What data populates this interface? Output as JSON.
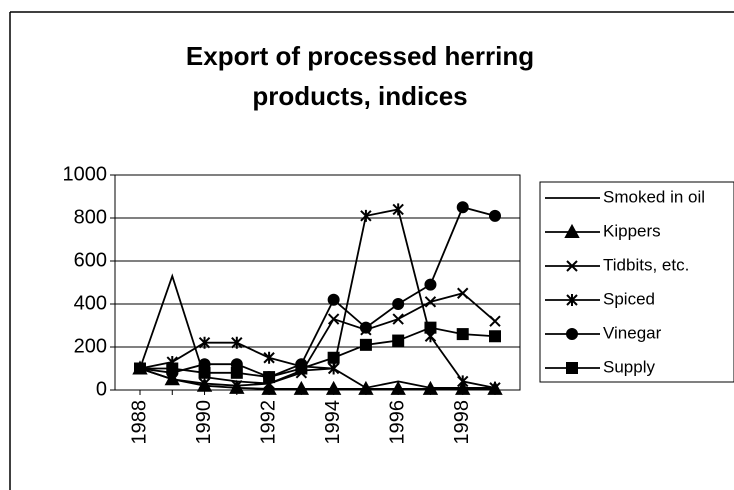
{
  "chart_data": {
    "type": "line",
    "title": "Export of processed herring",
    "subtitle": "products, indices",
    "categories": [
      "1988",
      null,
      "1990",
      null,
      "1992",
      null,
      "1994",
      null,
      "1996",
      null,
      "1998",
      null
    ],
    "ylim": [
      0,
      1000
    ],
    "yticks": [
      0,
      200,
      400,
      600,
      800,
      1000
    ],
    "grid": true,
    "legend": "right",
    "series": [
      {
        "name": "Smoked in oil",
        "color": "#000000",
        "marker": "none",
        "values": [
          100,
          530,
          60,
          40,
          30,
          90,
          100,
          10,
          40,
          10,
          10,
          10
        ]
      },
      {
        "name": "Kippers",
        "color": "#000000",
        "marker": "triangle",
        "values": [
          100,
          50,
          20,
          10,
          5,
          5,
          5,
          5,
          5,
          5,
          5,
          5
        ]
      },
      {
        "name": "Tidbits, etc.",
        "color": "#000000",
        "marker": "x",
        "values": [
          100,
          50,
          30,
          20,
          30,
          80,
          330,
          280,
          330,
          410,
          450,
          320
        ]
      },
      {
        "name": "Spiced",
        "color": "#000000",
        "marker": "asterisk",
        "values": [
          100,
          130,
          220,
          220,
          150,
          110,
          100,
          810,
          840,
          250,
          40,
          10
        ]
      },
      {
        "name": "Vinegar",
        "color": "#000000",
        "marker": "circle",
        "values": [
          100,
          80,
          120,
          120,
          60,
          120,
          420,
          290,
          400,
          490,
          850,
          810
        ]
      },
      {
        "name": "Supply",
        "color": "#000000",
        "marker": "square",
        "values": [
          100,
          100,
          80,
          80,
          60,
          100,
          150,
          210,
          230,
          290,
          260,
          250
        ]
      }
    ]
  }
}
